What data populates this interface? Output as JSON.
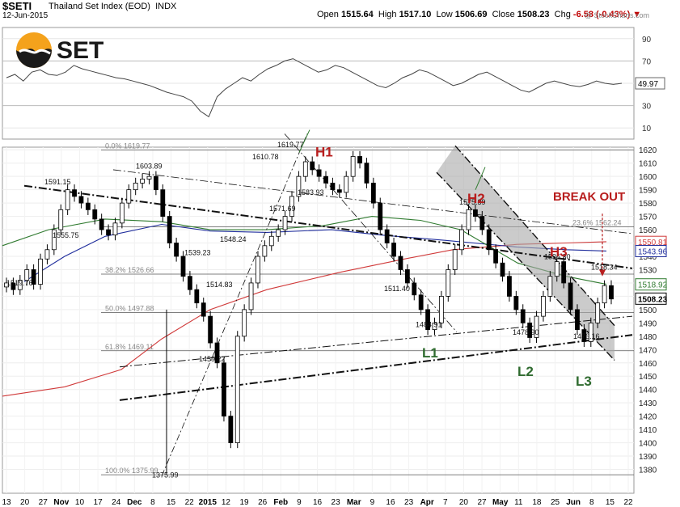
{
  "header": {
    "symbol": "$SETI",
    "name": "Thailand Set Index (EOD)",
    "exchange": "INDX",
    "date": "12-Jun-2015",
    "open_label": "Open",
    "open": "1515.64",
    "high_label": "High",
    "high": "1517.10",
    "low_label": "Low",
    "low": "1506.69",
    "close_label": "Close",
    "close": "1508.23",
    "chg_label": "Chg",
    "chg": "-6.58 (-0.43%)",
    "watermark": "@ StockCharts.com"
  },
  "logo_text": "SET",
  "colors": {
    "up": "#ffffff",
    "down": "#000000",
    "ma_red": "#d03a3a",
    "ma_blue": "#1f2d9c",
    "ma_green": "#2f7a2f",
    "annot_red": "#b81e1e",
    "annot_green": "#2f6b2f",
    "rsi_fill": "#cccccc",
    "channel_fill": "#a9a9a9"
  },
  "rsi": {
    "ticks": [
      "90",
      "70",
      "50",
      "30",
      "10"
    ],
    "last_value": "49.97"
  },
  "chart_data": {
    "type": "candlestick",
    "title": "$SETI Thailand Set Index (EOD) INDX",
    "ylim": [
      1370,
      1625
    ],
    "y_ticks": [
      1380,
      1390,
      1400,
      1410,
      1420,
      1430,
      1440,
      1450,
      1460,
      1470,
      1480,
      1490,
      1500,
      1510,
      1520,
      1530,
      1540,
      1550,
      1560,
      1570,
      1580,
      1590,
      1600,
      1610,
      1620
    ],
    "x_labels": [
      "13",
      "20",
      "27",
      "Nov",
      "10",
      "17",
      "24",
      "Dec",
      "8",
      "15",
      "22",
      "2015",
      "12",
      "19",
      "26",
      "Feb",
      "9",
      "16",
      "23",
      "Mar",
      "9",
      "16",
      "23",
      "Apr",
      "7",
      "20",
      "27",
      "May",
      "11",
      "18",
      "25",
      "Jun",
      "8",
      "15",
      "22"
    ],
    "fib_levels": [
      {
        "label": "0.0% 1619.77",
        "value": 1619.77
      },
      {
        "label": "23.6% 1562.24",
        "value": 1562.24
      },
      {
        "label": "38.2% 1526.66",
        "value": 1526.66
      },
      {
        "label": "50.0% 1497.88",
        "value": 1497.88
      },
      {
        "label": "61.8% 1469.11",
        "value": 1469.11
      },
      {
        "label": "100.0% 1375.99",
        "value": 1375.99
      }
    ],
    "price_labels": [
      {
        "text": "1591.15",
        "value": 1591.15
      },
      {
        "text": "1603.89",
        "value": 1603.89
      },
      {
        "text": "1610.78",
        "value": 1610.78
      },
      {
        "text": "1619.77",
        "value": 1619.77
      },
      {
        "text": "1555.75",
        "value": 1555.75
      },
      {
        "text": "1519.76",
        "value": 1519.76
      },
      {
        "text": "1539.23",
        "value": 1539.23
      },
      {
        "text": "1548.24",
        "value": 1548.24
      },
      {
        "text": "1571.69",
        "value": 1571.69
      },
      {
        "text": "1583.93",
        "value": 1583.93
      },
      {
        "text": "1514.83",
        "value": 1514.83
      },
      {
        "text": "1459.22",
        "value": 1459.22
      },
      {
        "text": "1375.99",
        "value": 1375.99
      },
      {
        "text": "1511.40",
        "value": 1511.4
      },
      {
        "text": "1484.91",
        "value": 1484.91
      },
      {
        "text": "1575.39",
        "value": 1575.39
      },
      {
        "text": "1536.30",
        "value": 1536.3
      },
      {
        "text": "1478.90",
        "value": 1478.9
      },
      {
        "text": "1476.16",
        "value": 1476.16
      },
      {
        "text": "1518.34",
        "value": 1518.34
      }
    ],
    "right_labels": [
      {
        "text": "1550.81",
        "value": 1550.81,
        "color": "#d03a3a"
      },
      {
        "text": "1543.96",
        "value": 1543.96,
        "color": "#1f2d9c"
      },
      {
        "text": "1518.92",
        "value": 1518.92,
        "color": "#2f7a2f"
      },
      {
        "text": "1508.23",
        "value": 1508.23,
        "color": "#000000"
      }
    ],
    "annotations": [
      {
        "text": "H1",
        "color": "#b81e1e"
      },
      {
        "text": "H2",
        "color": "#b81e1e"
      },
      {
        "text": "H3",
        "color": "#b81e1e"
      },
      {
        "text": "L1",
        "color": "#2f6b2f"
      },
      {
        "text": "L2",
        "color": "#2f6b2f"
      },
      {
        "text": "L3",
        "color": "#2f6b2f"
      },
      {
        "text": "BREAK OUT",
        "color": "#b81e1e"
      }
    ],
    "key_points": [
      {
        "label": "H1",
        "value": 1619.77
      },
      {
        "label": "H2",
        "value": 1575.39
      },
      {
        "label": "H3",
        "value": 1536.3
      },
      {
        "label": "L1",
        "value": 1484.91
      },
      {
        "label": "L2",
        "value": 1478.9
      },
      {
        "label": "L3",
        "value": 1476.16
      }
    ],
    "series": [
      {
        "name": "close",
        "values": [
          1520,
          1515,
          1522,
          1530,
          1519,
          1538,
          1545,
          1560,
          1575,
          1590,
          1585,
          1580,
          1575,
          1568,
          1560,
          1556,
          1565,
          1580,
          1590,
          1595,
          1598,
          1600,
          1590,
          1570,
          1550,
          1540,
          1525,
          1515,
          1505,
          1495,
          1475,
          1460,
          1420,
          1400,
          1480,
          1500,
          1520,
          1540,
          1548,
          1555,
          1560,
          1570,
          1585,
          1600,
          1611,
          1605,
          1600,
          1595,
          1590,
          1588,
          1600,
          1615,
          1610,
          1595,
          1580,
          1560,
          1550,
          1540,
          1530,
          1520,
          1511,
          1500,
          1485,
          1490,
          1510,
          1530,
          1545,
          1560,
          1575,
          1570,
          1560,
          1545,
          1535,
          1525,
          1510,
          1500,
          1490,
          1479,
          1495,
          1510,
          1525,
          1536,
          1520,
          1500,
          1485,
          1476,
          1490,
          1505,
          1518,
          1508
        ]
      }
    ]
  }
}
